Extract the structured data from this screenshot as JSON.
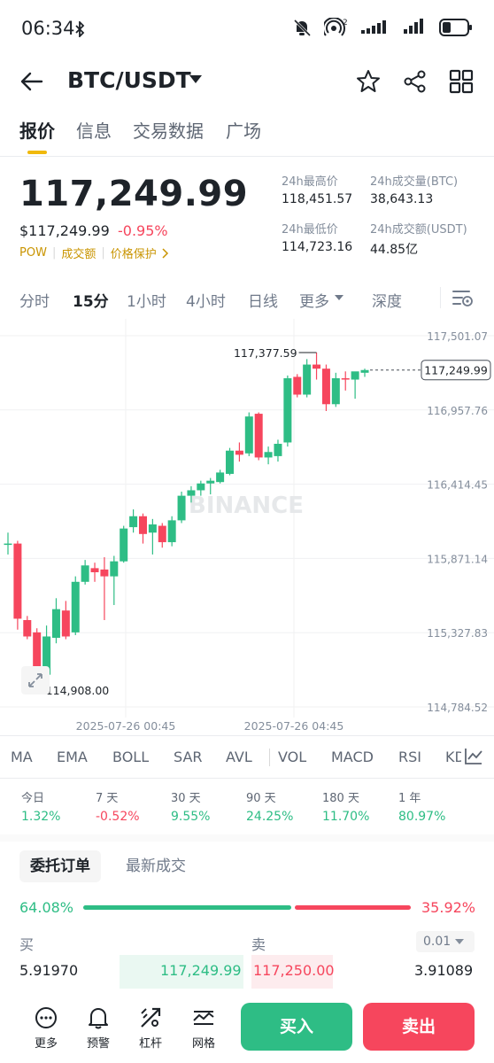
{
  "status_bar": {
    "time": "06:34",
    "network_sup": "2"
  },
  "header": {
    "pair": "BTC/USDT"
  },
  "tabs": [
    {
      "label": "报价",
      "active": true
    },
    {
      "label": "信息",
      "active": false
    },
    {
      "label": "交易数据",
      "active": false
    },
    {
      "label": "广场",
      "active": false
    }
  ],
  "price": {
    "last": "117,249.99",
    "usd": "$117,249.99",
    "change": "-0.95%",
    "links": [
      "POW",
      "成交额",
      "价格保护"
    ]
  },
  "stats": {
    "high_label": "24h最高价",
    "high_value": "118,451.57",
    "vol_btc_label": "24h成交量(BTC)",
    "vol_btc_value": "38,643.13",
    "low_label": "24h最低价",
    "low_value": "114,723.16",
    "vol_usdt_label": "24h成交额(USDT)",
    "vol_usdt_value": "44.85亿"
  },
  "intervals": [
    {
      "label": "分时",
      "active": false
    },
    {
      "label": "15分",
      "active": true
    },
    {
      "label": "1小时",
      "active": false
    },
    {
      "label": "4小时",
      "active": false
    },
    {
      "label": "日线",
      "active": false
    },
    {
      "label": "更多",
      "active": false
    },
    {
      "label": "深度",
      "active": false
    }
  ],
  "chart_data": {
    "type": "candlestick",
    "watermark": "BINANCE",
    "y_ticks": [
      "117,501.07",
      "116,957.76",
      "116,414.45",
      "115,871.14",
      "115,327.83",
      "114,784.52"
    ],
    "ylim": [
      114784.52,
      117501.07
    ],
    "x_ticks": [
      "2025-07-26 00:45",
      "2025-07-26 04:45"
    ],
    "current_price_label": "117,249.99",
    "current_price": 117249.99,
    "max_marker": "117,377.59",
    "max_value": 117377.59,
    "min_marker": "114,908.00",
    "min_value": 114908.0,
    "candles": [
      {
        "o": 115980,
        "h": 116060,
        "l": 115900,
        "c": 115980
      },
      {
        "o": 115980,
        "h": 116000,
        "l": 115350,
        "c": 115430
      },
      {
        "o": 115420,
        "h": 115450,
        "l": 115280,
        "c": 115300
      },
      {
        "o": 115330,
        "h": 115360,
        "l": 114908,
        "c": 114980
      },
      {
        "o": 115020,
        "h": 115380,
        "l": 114908,
        "c": 115300
      },
      {
        "o": 115290,
        "h": 115580,
        "l": 115250,
        "c": 115500
      },
      {
        "o": 115490,
        "h": 115560,
        "l": 115280,
        "c": 115300
      },
      {
        "o": 115330,
        "h": 115740,
        "l": 115310,
        "c": 115700
      },
      {
        "o": 115700,
        "h": 115860,
        "l": 115680,
        "c": 115820
      },
      {
        "o": 115800,
        "h": 115840,
        "l": 115700,
        "c": 115770
      },
      {
        "o": 115790,
        "h": 115880,
        "l": 115420,
        "c": 115740
      },
      {
        "o": 115740,
        "h": 115890,
        "l": 115530,
        "c": 115850
      },
      {
        "o": 115850,
        "h": 116110,
        "l": 115840,
        "c": 116090
      },
      {
        "o": 116100,
        "h": 116230,
        "l": 116060,
        "c": 116180
      },
      {
        "o": 116180,
        "h": 116200,
        "l": 115980,
        "c": 116050
      },
      {
        "o": 116060,
        "h": 116160,
        "l": 115900,
        "c": 116120
      },
      {
        "o": 116110,
        "h": 116130,
        "l": 115950,
        "c": 115990
      },
      {
        "o": 115990,
        "h": 116180,
        "l": 115960,
        "c": 116150
      },
      {
        "o": 116150,
        "h": 116360,
        "l": 116130,
        "c": 116330
      },
      {
        "o": 116330,
        "h": 116400,
        "l": 116280,
        "c": 116370
      },
      {
        "o": 116370,
        "h": 116440,
        "l": 116330,
        "c": 116420
      },
      {
        "o": 116420,
        "h": 116460,
        "l": 116340,
        "c": 116440
      },
      {
        "o": 116430,
        "h": 116520,
        "l": 116420,
        "c": 116500
      },
      {
        "o": 116490,
        "h": 116680,
        "l": 116480,
        "c": 116660
      },
      {
        "o": 116660,
        "h": 116720,
        "l": 116580,
        "c": 116630
      },
      {
        "o": 116640,
        "h": 116940,
        "l": 116620,
        "c": 116910
      },
      {
        "o": 116930,
        "h": 116940,
        "l": 116590,
        "c": 116610
      },
      {
        "o": 116610,
        "h": 116690,
        "l": 116560,
        "c": 116650
      },
      {
        "o": 116620,
        "h": 116740,
        "l": 116580,
        "c": 116710
      },
      {
        "o": 116720,
        "h": 117210,
        "l": 116690,
        "c": 117190
      },
      {
        "o": 117200,
        "h": 117220,
        "l": 117050,
        "c": 117070
      },
      {
        "o": 117070,
        "h": 117330,
        "l": 117050,
        "c": 117290
      },
      {
        "o": 117290,
        "h": 117377.59,
        "l": 117180,
        "c": 117260
      },
      {
        "o": 117260,
        "h": 117290,
        "l": 116950,
        "c": 117000
      },
      {
        "o": 117000,
        "h": 117230,
        "l": 116980,
        "c": 117190
      },
      {
        "o": 117190,
        "h": 117240,
        "l": 117100,
        "c": 117180
      },
      {
        "o": 117180,
        "h": 117230,
        "l": 117040,
        "c": 117240
      },
      {
        "o": 117230,
        "h": 117260,
        "l": 117200,
        "c": 117249.99
      }
    ]
  },
  "indicators": [
    "MA",
    "EMA",
    "BOLL",
    "SAR",
    "AVL",
    "VOL",
    "MACD",
    "RSI",
    "KD"
  ],
  "performance": [
    {
      "label": "今日",
      "value": "1.32%",
      "up": true
    },
    {
      "label": "7 天",
      "value": "-0.52%",
      "up": false
    },
    {
      "label": "30 天",
      "value": "9.55%",
      "up": true
    },
    {
      "label": "90 天",
      "value": "24.25%",
      "up": true
    },
    {
      "label": "180 天",
      "value": "11.70%",
      "up": true
    },
    {
      "label": "1 年",
      "value": "80.97%",
      "up": true
    }
  ],
  "order_book": {
    "tab_active": "委托订单",
    "tab_other": "最新成交",
    "buy_ratio": "64.08%",
    "sell_ratio": "35.92%",
    "buy_ratio_value": 64.08,
    "buy_label": "买",
    "sell_label": "卖",
    "precision": "0.01",
    "bid_qty": "5.91970",
    "bid_price": "117,249.99",
    "ask_price": "117,250.00",
    "ask_qty": "3.91089"
  },
  "bottom_nav": {
    "items": [
      "更多",
      "预警",
      "杠杆",
      "网格"
    ],
    "buy": "买入",
    "sell": "卖出"
  },
  "colors": {
    "up": "#2ebd85",
    "down": "#f6465d",
    "accent": "#f0b90b"
  }
}
